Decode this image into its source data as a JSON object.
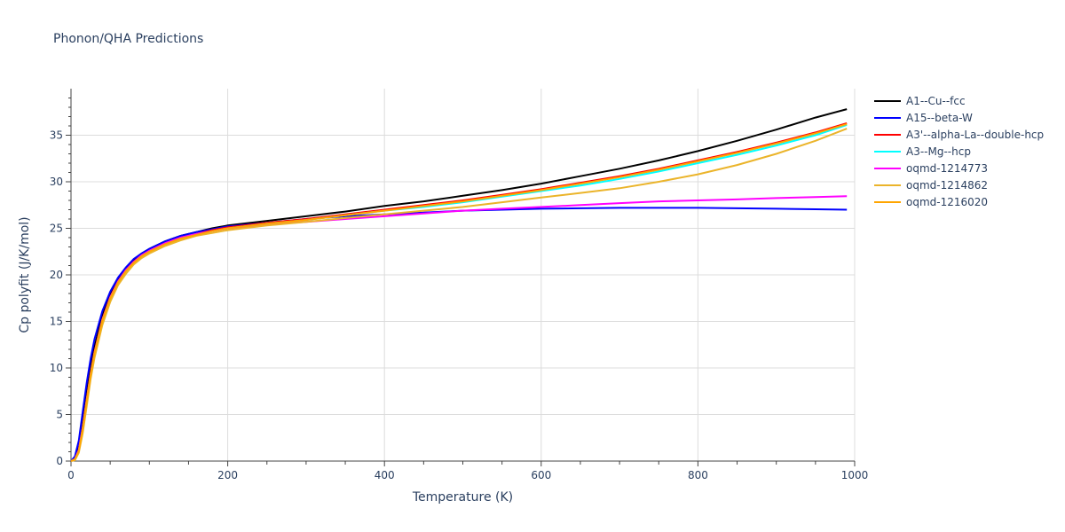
{
  "chart_data": {
    "type": "line",
    "title": "Phonon/QHA Predictions",
    "xlabel": "Temperature (K)",
    "ylabel": "Cp polyfit (J/K/mol)",
    "xlim": [
      0,
      1000
    ],
    "ylim": [
      0,
      40
    ],
    "xticks": [
      0,
      200,
      400,
      600,
      800,
      1000
    ],
    "yticks": [
      0,
      5,
      10,
      15,
      20,
      25,
      30,
      35
    ],
    "grid": true,
    "legend_position": "right",
    "x": [
      0,
      5,
      10,
      15,
      20,
      25,
      30,
      40,
      50,
      60,
      70,
      80,
      90,
      100,
      120,
      140,
      160,
      180,
      200,
      250,
      300,
      350,
      400,
      450,
      500,
      550,
      600,
      650,
      700,
      750,
      800,
      850,
      900,
      950,
      990
    ],
    "series": [
      {
        "name": "A1--Cu--fcc",
        "color": "#000000",
        "values": [
          0,
          0.3,
          1.6,
          4.3,
          7.4,
          10.1,
          12.3,
          15.7,
          18.0,
          19.6,
          20.7,
          21.6,
          22.3,
          22.8,
          23.6,
          24.2,
          24.6,
          25.0,
          25.3,
          25.8,
          26.3,
          26.8,
          27.4,
          27.9,
          28.5,
          29.1,
          29.8,
          30.6,
          31.4,
          32.3,
          33.3,
          34.4,
          35.6,
          36.9,
          37.8
        ]
      },
      {
        "name": "A15--beta-W",
        "color": "#0000ff",
        "values": [
          0,
          0.5,
          2.2,
          5.3,
          8.4,
          11.0,
          13.1,
          16.1,
          18.2,
          19.7,
          20.8,
          21.7,
          22.3,
          22.8,
          23.6,
          24.2,
          24.6,
          24.9,
          25.2,
          25.6,
          26.0,
          26.3,
          26.5,
          26.7,
          26.9,
          27.0,
          27.1,
          27.15,
          27.2,
          27.2,
          27.2,
          27.15,
          27.1,
          27.05,
          27.0
        ]
      },
      {
        "name": "A3'--alpha-La--double-hcp",
        "color": "#ff0000",
        "values": [
          0,
          0.2,
          1.2,
          3.6,
          6.6,
          9.4,
          11.7,
          15.2,
          17.6,
          19.3,
          20.5,
          21.4,
          22.1,
          22.6,
          23.4,
          24.0,
          24.4,
          24.8,
          25.1,
          25.6,
          26.0,
          26.5,
          27.0,
          27.5,
          28.0,
          28.6,
          29.2,
          29.9,
          30.6,
          31.4,
          32.3,
          33.2,
          34.2,
          35.3,
          36.3
        ]
      },
      {
        "name": "A3--Mg--hcp",
        "color": "#00ffff",
        "values": [
          0,
          0.2,
          1.1,
          3.5,
          6.5,
          9.3,
          11.6,
          15.1,
          17.5,
          19.2,
          20.4,
          21.3,
          22.0,
          22.5,
          23.3,
          23.9,
          24.3,
          24.7,
          25.0,
          25.5,
          25.9,
          26.4,
          26.9,
          27.3,
          27.8,
          28.4,
          29.0,
          29.6,
          30.3,
          31.1,
          32.0,
          32.9,
          33.9,
          35.0,
          36.1
        ]
      },
      {
        "name": "oqmd-1214773",
        "color": "#ff00ff",
        "values": [
          0,
          0.2,
          1.2,
          3.6,
          6.6,
          9.4,
          11.7,
          15.2,
          17.6,
          19.3,
          20.5,
          21.4,
          22.1,
          22.6,
          23.4,
          24.0,
          24.4,
          24.7,
          25.0,
          25.4,
          25.7,
          26.0,
          26.3,
          26.6,
          26.9,
          27.1,
          27.3,
          27.5,
          27.7,
          27.9,
          28.0,
          28.1,
          28.25,
          28.35,
          28.45
        ]
      },
      {
        "name": "oqmd-1214862",
        "color": "#ebb42a",
        "values": [
          0,
          0.1,
          0.9,
          3.0,
          5.9,
          8.8,
          11.1,
          14.6,
          17.1,
          18.9,
          20.1,
          21.1,
          21.8,
          22.3,
          23.1,
          23.7,
          24.2,
          24.5,
          24.8,
          25.3,
          25.7,
          26.1,
          26.5,
          26.9,
          27.3,
          27.8,
          28.3,
          28.8,
          29.3,
          30.0,
          30.8,
          31.8,
          33.0,
          34.4,
          35.7
        ]
      },
      {
        "name": "oqmd-1216020",
        "color": "#ffa500",
        "values": [
          0,
          0.2,
          1.1,
          3.5,
          6.5,
          9.3,
          11.6,
          15.1,
          17.5,
          19.2,
          20.4,
          21.3,
          22.0,
          22.5,
          23.3,
          23.9,
          24.3,
          24.7,
          25.0,
          25.5,
          25.9,
          26.4,
          26.9,
          27.4,
          27.9,
          28.5,
          29.1,
          29.8,
          30.5,
          31.3,
          32.2,
          33.1,
          34.1,
          35.2,
          36.2
        ]
      }
    ]
  }
}
